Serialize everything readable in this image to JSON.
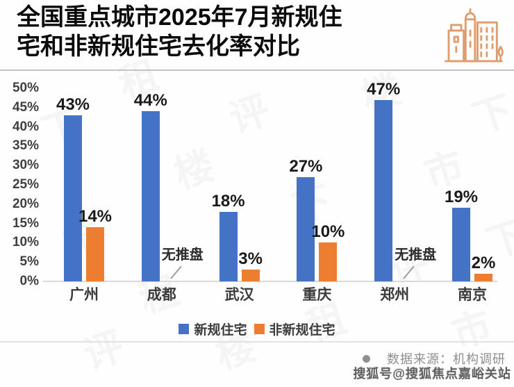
{
  "title": {
    "line1": "全国重点城市2025年7月新规住",
    "line2": "宅和非新规住宅去化率对比",
    "full": "全国重点城市2025年7月新规住宅和非新规住宅去化率对比"
  },
  "header_icon": "city-buildings-icon",
  "chart_data": {
    "type": "bar",
    "title": "全国重点城市2025年7月新规住宅和非新规住宅去化率对比",
    "categories": [
      "广州",
      "成都",
      "武汉",
      "重庆",
      "郑州",
      "南京"
    ],
    "series": [
      {
        "name": "新规住宅",
        "color": "#4472C4",
        "values": [
          43,
          44,
          18,
          27,
          47,
          19
        ]
      },
      {
        "name": "非新规住宅",
        "color": "#ED7D31",
        "values": [
          14,
          null,
          3,
          10,
          null,
          2
        ]
      }
    ],
    "value_labels": {
      "新规住宅": [
        "43%",
        "44%",
        "18%",
        "27%",
        "47%",
        "19%"
      ],
      "非新规住宅": [
        "14%",
        null,
        "3%",
        "10%",
        null,
        "2%"
      ]
    },
    "annotations": [
      {
        "category": "成都",
        "category_index": 1,
        "text": "无推盘"
      },
      {
        "category": "郑州",
        "category_index": 4,
        "text": "无推盘"
      }
    ],
    "xlabel": "",
    "ylabel": "",
    "ylim": [
      0,
      50
    ],
    "ytick_step": 5,
    "ytick_format": "percent",
    "grid": false,
    "legend_position": "bottom"
  },
  "footer": {
    "source_text": "数据来源：机构调研",
    "credit_text": "搜狐号@搜狐焦点嘉峪关站"
  },
  "watermark": {
    "chars": [
      "下",
      "租",
      "楼",
      "市",
      "评"
    ]
  },
  "colors": {
    "bar_blue": "#4472C4",
    "bar_orange": "#ED7D31",
    "icon_orange": "#DF9D6F",
    "axis_text": "#3f3f3f"
  }
}
